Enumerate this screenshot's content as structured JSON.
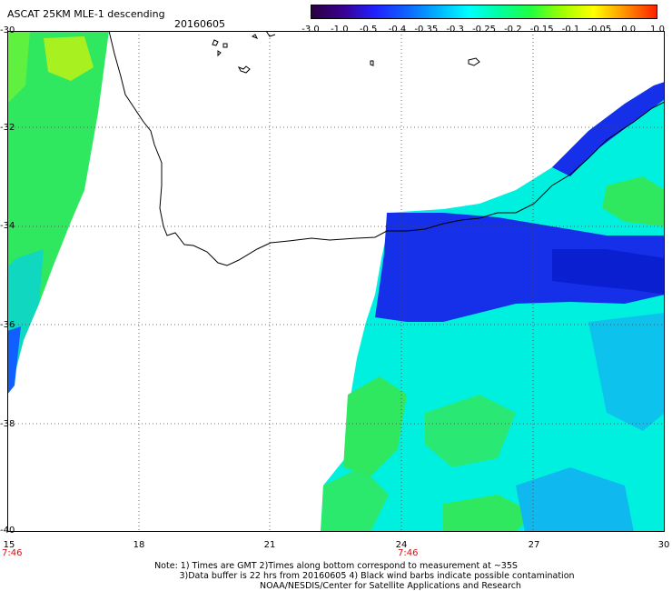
{
  "header": {
    "title": "ASCAT 25KM MLE-1 descending",
    "date": "20160605"
  },
  "colorbar": {
    "ticks": [
      "-3.0",
      "-1.0",
      "-0.5",
      "-0.4",
      "-0.35",
      "-0.3",
      "-0.25",
      "-0.2",
      "-0.15",
      "-0.1",
      "-0.05",
      "0.0",
      "1.0"
    ],
    "colors": [
      "#2a0040",
      "#3a0090",
      "#2020ff",
      "#1060ff",
      "#00b0ff",
      "#00ffff",
      "#00ffa0",
      "#20ff40",
      "#a0ff00",
      "#ffff00",
      "#ff9000",
      "#ff2000"
    ]
  },
  "axes": {
    "lat_labels": [
      "-30",
      "-32",
      "-34",
      "-36",
      "-38",
      "-40"
    ],
    "lon_labels": [
      "15",
      "18",
      "21",
      "24",
      "27",
      "30"
    ],
    "time_labels": [
      "7:46",
      "7:46"
    ]
  },
  "data_colors": {
    "green": "#30e860",
    "cyan": "#00f0e0",
    "blue": "#1530e8",
    "lightblue": "#10b8f0"
  },
  "footer": {
    "note_line1": "Note: 1) Times are GMT 2)Times along bottom correspond to measurement at ~35S",
    "note_line2": "3)Data buffer is 22 hrs from 20160605 4) Black wind barbs indicate possible contamination",
    "note_line3": "NOAA/NESDIS/Center for Satellite Applications and Research"
  }
}
